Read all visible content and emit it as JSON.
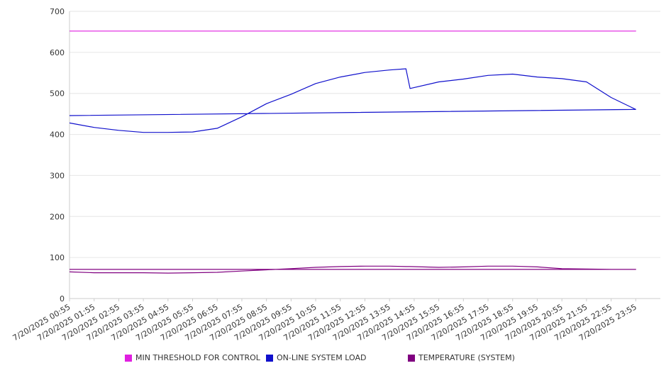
{
  "chart_data": {
    "type": "line",
    "title": "",
    "xlabel": "",
    "ylabel": "",
    "ylim": [
      0,
      700
    ],
    "y_ticks": [
      0,
      100,
      200,
      300,
      400,
      500,
      600,
      700
    ],
    "grid": "horizontal",
    "legend_position": "bottom",
    "x_start": "7/20/2025 00:55",
    "x_end": "7/20/2025 23:55",
    "x_tick_labels": [
      "7/20/2025 00:55",
      "7/20/2025 01:55",
      "7/20/2025 02:55",
      "7/20/2025 03:55",
      "7/20/2025 04:55",
      "7/20/2025 05:55",
      "7/20/2025 06:55",
      "7/20/2025 07:55",
      "7/20/2025 08:55",
      "7/20/2025 09:55",
      "7/20/2025 10:55",
      "7/20/2025 11:55",
      "7/20/2025 12:55",
      "7/20/2025 13:55",
      "7/20/2025 14:55",
      "7/20/2025 15:55",
      "7/20/2025 16:55",
      "7/20/2025 17:55",
      "7/20/2025 18:55",
      "7/20/2025 19:55",
      "7/20/2025 20:55",
      "7/20/2025 21:55",
      "7/20/2025 22:55",
      "7/20/2025 23:55"
    ],
    "x_times": [
      "00:55",
      "01:55",
      "02:55",
      "03:55",
      "04:55",
      "05:55",
      "06:55",
      "07:55",
      "08:55",
      "09:55",
      "10:55",
      "11:55",
      "12:55",
      "13:55",
      "14:35",
      "14:45",
      "15:55",
      "16:55",
      "17:55",
      "18:55",
      "19:55",
      "20:55",
      "21:55",
      "22:55",
      "23:55",
      "00:55"
    ],
    "series": [
      {
        "name": "MIN THRESHOLD FOR CONTROL",
        "color": "#e020e0",
        "values": [
          652,
          652,
          652,
          652,
          652,
          652,
          652,
          652,
          652,
          652,
          652,
          652,
          652,
          652,
          652,
          652,
          652,
          652,
          652,
          652,
          652,
          652,
          652,
          652,
          652,
          652
        ]
      },
      {
        "name": "ON-LINE SYSTEM LOAD",
        "color": "#1010cc",
        "values": [
          428,
          417,
          410,
          405,
          405,
          406,
          415,
          443,
          475,
          498,
          524,
          540,
          551,
          557,
          560,
          512,
          528,
          535,
          544,
          547,
          540,
          536,
          528,
          490,
          461,
          446
        ]
      },
      {
        "name": "TEMPERATURE (SYSTEM)",
        "color": "#800080",
        "values": [
          65,
          63,
          63,
          63,
          62,
          63,
          64,
          67,
          70,
          73,
          76,
          78,
          79,
          79,
          78,
          78,
          76,
          77,
          79,
          79,
          77,
          73,
          72,
          71,
          71,
          71
        ]
      }
    ]
  }
}
